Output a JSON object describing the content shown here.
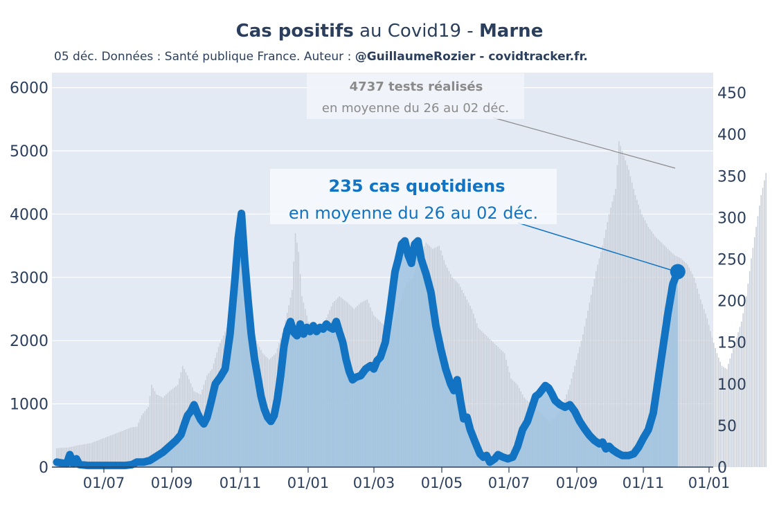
{
  "title": {
    "part1": "Cas positifs",
    "part2": " au Covid19 - ",
    "part3": "Marne"
  },
  "subtitle": {
    "part1": "05 déc. Données : Santé publique France. Auteur : ",
    "part2": "@GuillaumeRozier - covidtracker.fr."
  },
  "annotations": {
    "tests": {
      "line1": "4737 tests réalisés",
      "line2": "en moyenne du 26 au 02 déc.",
      "color": "#8a8a8a"
    },
    "cases": {
      "line1": "235 cas quotidiens",
      "line2": "en moyenne du 26 au 02 déc.",
      "color": "#1273c2"
    }
  },
  "colors": {
    "plot_bg": "#e4eaf4",
    "cases_line": "#1273c2",
    "cases_fill": "#9fc3e0",
    "tests_bars": "#c9cfd8",
    "text": "#2b3f5c"
  },
  "chart_data": {
    "type": "line",
    "x_tick_labels": [
      "01/07",
      "01/09",
      "01/11",
      "01/01",
      "01/03",
      "01/05",
      "01/07",
      "01/09",
      "01/11",
      "01/01"
    ],
    "y_left": {
      "ticks": [
        0,
        1000,
        2000,
        3000,
        4000,
        5000,
        6000
      ],
      "range": [
        0,
        6200
      ]
    },
    "y_right": {
      "ticks": [
        0,
        50,
        100,
        150,
        200,
        250,
        300,
        350,
        400,
        450
      ],
      "range": [
        0,
        470
      ]
    },
    "grid": true,
    "series": [
      {
        "axis": "left",
        "style": "bars",
        "points": [
          [
            0,
            300
          ],
          [
            14,
            310
          ],
          [
            28,
            350
          ],
          [
            42,
            380
          ],
          [
            56,
            450
          ],
          [
            70,
            520
          ],
          [
            84,
            590
          ],
          [
            92,
            630
          ],
          [
            98,
            640
          ],
          [
            104,
            820
          ],
          [
            112,
            950
          ],
          [
            116,
            1300
          ],
          [
            122,
            1150
          ],
          [
            130,
            1100
          ],
          [
            138,
            1200
          ],
          [
            148,
            1300
          ],
          [
            154,
            1600
          ],
          [
            160,
            1450
          ],
          [
            168,
            1200
          ],
          [
            176,
            1150
          ],
          [
            184,
            1450
          ],
          [
            190,
            1550
          ],
          [
            198,
            1900
          ],
          [
            208,
            2200
          ],
          [
            216,
            2400
          ],
          [
            222,
            3050
          ],
          [
            228,
            2500
          ],
          [
            236,
            2200
          ],
          [
            244,
            2000
          ],
          [
            252,
            1800
          ],
          [
            260,
            1700
          ],
          [
            268,
            1800
          ],
          [
            278,
            2200
          ],
          [
            288,
            2800
          ],
          [
            292,
            3700
          ],
          [
            296,
            3400
          ],
          [
            300,
            2700
          ],
          [
            308,
            2300
          ],
          [
            318,
            2200
          ],
          [
            328,
            2300
          ],
          [
            338,
            2600
          ],
          [
            346,
            2700
          ],
          [
            356,
            2600
          ],
          [
            364,
            2500
          ],
          [
            372,
            2600
          ],
          [
            380,
            2650
          ],
          [
            388,
            2400
          ],
          [
            396,
            2300
          ],
          [
            404,
            2200
          ],
          [
            412,
            2300
          ],
          [
            420,
            2600
          ],
          [
            428,
            2900
          ],
          [
            436,
            3000
          ],
          [
            444,
            3300
          ],
          [
            452,
            3550
          ],
          [
            460,
            3450
          ],
          [
            468,
            3500
          ],
          [
            476,
            3200
          ],
          [
            484,
            3000
          ],
          [
            492,
            2900
          ],
          [
            500,
            2700
          ],
          [
            508,
            2500
          ],
          [
            516,
            2200
          ],
          [
            524,
            2100
          ],
          [
            532,
            2000
          ],
          [
            540,
            1900
          ],
          [
            548,
            1800
          ],
          [
            556,
            1400
          ],
          [
            564,
            1300
          ],
          [
            572,
            1100
          ],
          [
            580,
            1000
          ],
          [
            588,
            900
          ],
          [
            596,
            800
          ],
          [
            604,
            700
          ],
          [
            612,
            800
          ],
          [
            620,
            1000
          ],
          [
            628,
            1300
          ],
          [
            636,
            1700
          ],
          [
            644,
            2100
          ],
          [
            652,
            2600
          ],
          [
            660,
            3100
          ],
          [
            668,
            3500
          ],
          [
            676,
            4000
          ],
          [
            684,
            4400
          ],
          [
            688,
            5150
          ],
          [
            692,
            5000
          ],
          [
            700,
            4700
          ],
          [
            708,
            4300
          ],
          [
            716,
            4000
          ],
          [
            724,
            3800
          ],
          [
            732,
            3650
          ],
          [
            740,
            3550
          ],
          [
            748,
            3450
          ],
          [
            756,
            3350
          ],
          [
            764,
            3300
          ],
          [
            772,
            3200
          ],
          [
            780,
            3000
          ],
          [
            788,
            2650
          ],
          [
            796,
            2350
          ],
          [
            802,
            2050
          ],
          [
            808,
            1800
          ],
          [
            814,
            1600
          ],
          [
            820,
            1550
          ],
          [
            826,
            1800
          ],
          [
            832,
            2050
          ],
          [
            838,
            2300
          ],
          [
            844,
            2700
          ],
          [
            850,
            3300
          ],
          [
            856,
            3800
          ],
          [
            862,
            4300
          ],
          [
            868,
            4650
          ]
        ]
      },
      {
        "axis": "right",
        "style": "line",
        "points": [
          [
            0,
            6
          ],
          [
            6,
            5
          ],
          [
            12,
            4
          ],
          [
            16,
            15
          ],
          [
            20,
            4
          ],
          [
            24,
            10
          ],
          [
            28,
            3
          ],
          [
            38,
            2
          ],
          [
            54,
            2
          ],
          [
            70,
            2
          ],
          [
            84,
            2
          ],
          [
            92,
            3
          ],
          [
            98,
            6
          ],
          [
            106,
            6
          ],
          [
            114,
            8
          ],
          [
            122,
            13
          ],
          [
            130,
            18
          ],
          [
            138,
            25
          ],
          [
            146,
            32
          ],
          [
            152,
            39
          ],
          [
            156,
            51
          ],
          [
            160,
            62
          ],
          [
            164,
            67
          ],
          [
            168,
            75
          ],
          [
            172,
            65
          ],
          [
            176,
            57
          ],
          [
            180,
            52
          ],
          [
            184,
            60
          ],
          [
            188,
            75
          ],
          [
            194,
            100
          ],
          [
            200,
            108
          ],
          [
            206,
            118
          ],
          [
            212,
            160
          ],
          [
            218,
            225
          ],
          [
            222,
            275
          ],
          [
            226,
            305
          ],
          [
            230,
            248
          ],
          [
            234,
            202
          ],
          [
            238,
            160
          ],
          [
            242,
            130
          ],
          [
            246,
            108
          ],
          [
            250,
            85
          ],
          [
            254,
            70
          ],
          [
            258,
            60
          ],
          [
            262,
            55
          ],
          [
            266,
            62
          ],
          [
            270,
            82
          ],
          [
            274,
            110
          ],
          [
            278,
            145
          ],
          [
            282,
            165
          ],
          [
            286,
            175
          ],
          [
            290,
            162
          ],
          [
            294,
            158
          ],
          [
            298,
            172
          ],
          [
            302,
            160
          ],
          [
            306,
            168
          ],
          [
            310,
            163
          ],
          [
            314,
            170
          ],
          [
            318,
            163
          ],
          [
            322,
            168
          ],
          [
            326,
            166
          ],
          [
            330,
            172
          ],
          [
            334,
            168
          ],
          [
            338,
            166
          ],
          [
            342,
            175
          ],
          [
            346,
            162
          ],
          [
            350,
            150
          ],
          [
            354,
            130
          ],
          [
            358,
            115
          ],
          [
            362,
            105
          ],
          [
            366,
            108
          ],
          [
            372,
            110
          ],
          [
            378,
            118
          ],
          [
            384,
            122
          ],
          [
            388,
            118
          ],
          [
            392,
            128
          ],
          [
            396,
            132
          ],
          [
            402,
            150
          ],
          [
            408,
            190
          ],
          [
            414,
            235
          ],
          [
            418,
            250
          ],
          [
            422,
            268
          ],
          [
            426,
            272
          ],
          [
            430,
            255
          ],
          [
            434,
            245
          ],
          [
            438,
            268
          ],
          [
            442,
            272
          ],
          [
            446,
            250
          ],
          [
            452,
            232
          ],
          [
            458,
            210
          ],
          [
            464,
            170
          ],
          [
            470,
            142
          ],
          [
            476,
            118
          ],
          [
            482,
            100
          ],
          [
            486,
            92
          ],
          [
            490,
            105
          ],
          [
            494,
            80
          ],
          [
            498,
            58
          ],
          [
            502,
            60
          ],
          [
            506,
            45
          ],
          [
            512,
            30
          ],
          [
            518,
            16
          ],
          [
            522,
            12
          ],
          [
            526,
            14
          ],
          [
            530,
            6
          ],
          [
            536,
            10
          ],
          [
            540,
            15
          ],
          [
            546,
            12
          ],
          [
            552,
            10
          ],
          [
            558,
            12
          ],
          [
            564,
            25
          ],
          [
            570,
            45
          ],
          [
            576,
            55
          ],
          [
            582,
            73
          ],
          [
            586,
            85
          ],
          [
            590,
            88
          ],
          [
            594,
            93
          ],
          [
            598,
            98
          ],
          [
            602,
            95
          ],
          [
            606,
            88
          ],
          [
            610,
            80
          ],
          [
            616,
            75
          ],
          [
            622,
            72
          ],
          [
            628,
            75
          ],
          [
            634,
            67
          ],
          [
            640,
            55
          ],
          [
            646,
            46
          ],
          [
            652,
            38
          ],
          [
            658,
            32
          ],
          [
            664,
            28
          ],
          [
            668,
            30
          ],
          [
            672,
            22
          ],
          [
            676,
            25
          ],
          [
            680,
            21
          ],
          [
            686,
            17
          ],
          [
            692,
            14
          ],
          [
            700,
            14
          ],
          [
            706,
            16
          ],
          [
            712,
            24
          ],
          [
            718,
            35
          ],
          [
            724,
            45
          ],
          [
            730,
            65
          ],
          [
            736,
            105
          ],
          [
            742,
            145
          ],
          [
            748,
            185
          ],
          [
            754,
            220
          ],
          [
            760,
            235
          ]
        ]
      }
    ]
  }
}
